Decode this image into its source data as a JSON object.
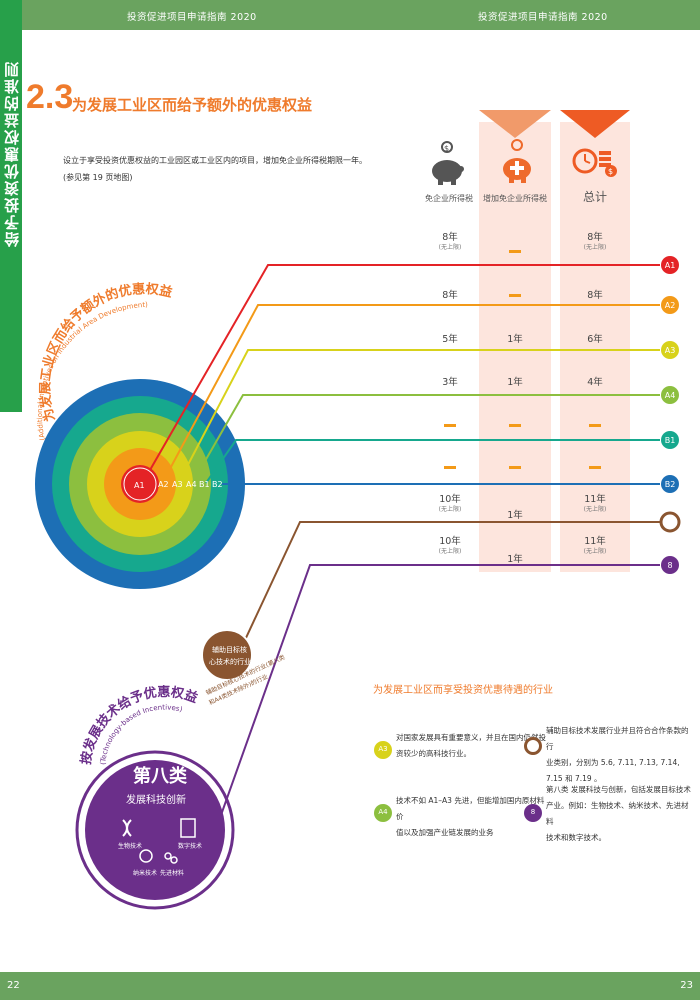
{
  "header": {
    "left_title": "投资促进项目申请指南 2020",
    "right_title": "投资促进项目申请指南 2020"
  },
  "sidebar": {
    "title": "给予投资优惠权益的准则"
  },
  "section": {
    "number": "2.3",
    "title": "为发展工业区而给予额外的优惠权益",
    "intro_line1": "设立于享受投资优惠权益的工业园区或工业区内的项目，增加免企业所得税期限一年。",
    "intro_line2": "(参见第 19 页地图)"
  },
  "columns": {
    "col1": "免企业所得税",
    "col2": "增加免企业所得税",
    "col3": "总计"
  },
  "rows": [
    {
      "code": "A1",
      "color": "#e42326",
      "col1": "8年",
      "col1_sub": "(无上限)",
      "col2": "",
      "col3": "8年",
      "col3_sub": "(无上限)"
    },
    {
      "code": "A2",
      "color": "#f39a18",
      "col1": "8年",
      "col1_sub": "",
      "col2": "",
      "col3": "8年",
      "col3_sub": ""
    },
    {
      "code": "A3",
      "color": "#d8d21b",
      "col1": "5年",
      "col1_sub": "",
      "col2": "1年",
      "col3": "6年",
      "col3_sub": ""
    },
    {
      "code": "A4",
      "color": "#8cbf3f",
      "col1": "3年",
      "col1_sub": "",
      "col2": "1年",
      "col3": "4年",
      "col3_sub": ""
    },
    {
      "code": "B1",
      "color": "#16a88e",
      "col1": "",
      "col1_sub": "",
      "col2": "",
      "col3": "",
      "col3_sub": ""
    },
    {
      "code": "B2",
      "color": "#1d6fb5",
      "col1": "",
      "col1_sub": "",
      "col2": "",
      "col3": "",
      "col3_sub": ""
    },
    {
      "code": "",
      "color": "#8a5530",
      "col1": "10年",
      "col1_sub": "(无上限)",
      "col2": "1年",
      "col3": "11年",
      "col3_sub": "(无上限)"
    },
    {
      "code": "8",
      "color": "#6b2f8a",
      "col1": "10年",
      "col1_sub": "(无上限)",
      "col2": "1年",
      "col3": "11年",
      "col3_sub": "(无上限)"
    }
  ],
  "rings": {
    "title": "为发展工业区而给予额外的优惠权益",
    "subtitle": "(Additional Incentives on Industrial Area Development)",
    "labels": [
      "A1",
      "A2",
      "A3",
      "A4",
      "B1",
      "B2"
    ]
  },
  "brown_circle": {
    "text_line1": "辅助目标核",
    "text_line2": "心技术的行业",
    "caption_line1": "辅助目标核心技术的行业(第八类",
    "caption_line2": "和A4类技术除外)的行业"
  },
  "tech_circle": {
    "arc_title": "按发展技术给予优惠权益",
    "arc_subtitle": "(Technology-based Incentives)",
    "title": "第八类",
    "subtitle": "发展科技创新",
    "items": [
      "生物技术",
      "数字技术",
      "纳米技术",
      "先进材料"
    ]
  },
  "industries": {
    "heading": "为发展工业区而享受投资优惠待遇的行业",
    "items": [
      {
        "code": "A3",
        "color": "#d8d21b",
        "line1": "对国家发展具有重要意义，并且在国内仍然投",
        "line2": "资较少的高科技行业。",
        "line3": ""
      },
      {
        "code": "",
        "color": "#8a5530",
        "line1": "辅助目标技术发展行业并且符合合作条款的行",
        "line2": "业类别，分别为 5.6, 7.11, 7.13, 7.14, 7.15 和 7.19 。",
        "line3": ""
      },
      {
        "code": "A4",
        "color": "#8cbf3f",
        "line1": "技术不如 A1–A3 先进，但能增加国内原材料价",
        "line2": "值以及加强产业链发展的业务",
        "line3": ""
      },
      {
        "code": "8",
        "color": "#6b2f8a",
        "line1": "第八类  发展科技与创新，包括发展目标技术",
        "line2": "产业。例如：生物技术、纳米技术、先进材料",
        "line3": "技术和数字技术。"
      }
    ]
  },
  "footer": {
    "left_page": "22",
    "right_page": "23"
  }
}
